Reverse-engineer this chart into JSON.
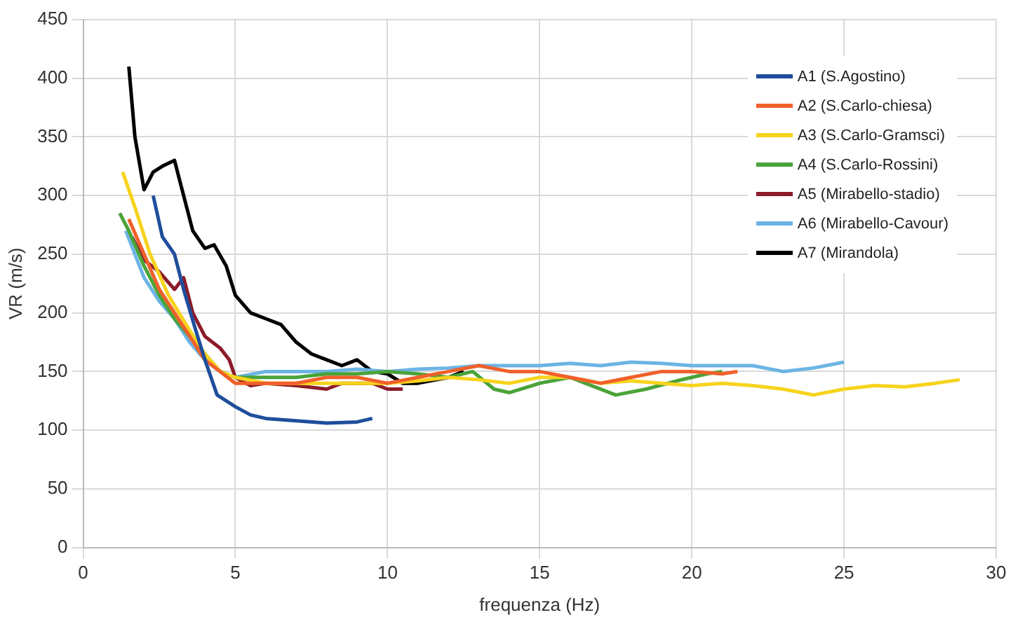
{
  "chart_data": {
    "type": "line",
    "xlabel": "frequenza (Hz)",
    "ylabel": "VR (m/s)",
    "xlim": [
      0,
      30
    ],
    "xticks": [
      0,
      5,
      10,
      15,
      20,
      25,
      30
    ],
    "ylim": [
      0,
      450
    ],
    "yticks": [
      0,
      50,
      100,
      150,
      200,
      250,
      300,
      350,
      400,
      450
    ],
    "grid": true,
    "legend": "top right",
    "marker": "none",
    "series": [
      {
        "name": "A1 (S.Agostino)",
        "color": "#1f4e9c",
        "x": [
          2.3,
          2.6,
          3.0,
          3.3,
          3.7,
          4.0,
          4.4,
          5,
          5.5,
          6,
          7,
          8,
          9,
          9.5
        ],
        "values": [
          300,
          265,
          250,
          220,
          185,
          160,
          130,
          120,
          113,
          110,
          108,
          106,
          107,
          110
        ]
      },
      {
        "name": "A2 (S.Carlo-chiesa)",
        "color": "#f0602a",
        "x": [
          1.5,
          2,
          2.5,
          3,
          3.5,
          4,
          4.5,
          5,
          6,
          7,
          8,
          9,
          10,
          11,
          12,
          13,
          14,
          15,
          16,
          17,
          18,
          19,
          20,
          21,
          21.5
        ],
        "values": [
          280,
          250,
          220,
          200,
          180,
          160,
          150,
          140,
          140,
          140,
          145,
          145,
          140,
          145,
          150,
          155,
          150,
          150,
          145,
          140,
          145,
          150,
          150,
          148,
          150
        ]
      },
      {
        "name": "A3 (S.Carlo-Gramsci)",
        "color": "#f7d31c",
        "x": [
          1.3,
          1.7,
          2.2,
          2.8,
          3.5,
          4,
          4.5,
          5,
          6,
          7,
          8,
          9,
          10,
          11,
          12,
          13,
          14,
          15,
          16,
          17,
          18,
          19,
          20,
          21,
          22,
          23,
          24,
          25,
          26,
          27,
          28,
          28.8
        ],
        "values": [
          320,
          290,
          250,
          215,
          185,
          165,
          150,
          145,
          140,
          140,
          140,
          140,
          140,
          142,
          145,
          143,
          140,
          145,
          145,
          140,
          142,
          140,
          138,
          140,
          138,
          135,
          130,
          135,
          138,
          137,
          140,
          143
        ]
      },
      {
        "name": "A4 (S.Carlo-Rossini)",
        "color": "#4aa338",
        "x": [
          1.2,
          1.5,
          2,
          2.5,
          3,
          3.5,
          4,
          4.5,
          5,
          6,
          7,
          8,
          9,
          10,
          11,
          12,
          12.8,
          13.5,
          14,
          15,
          16,
          16.5,
          17.5,
          18.5,
          19.5,
          20.5,
          21
        ],
        "values": [
          285,
          270,
          240,
          215,
          195,
          180,
          165,
          150,
          145,
          145,
          145,
          148,
          148,
          150,
          148,
          145,
          150,
          135,
          132,
          140,
          145,
          140,
          130,
          135,
          142,
          148,
          150
        ]
      },
      {
        "name": "A5 (Mirabello-stadio)",
        "color": "#8c1c2a",
        "x": [
          1.6,
          2,
          2.5,
          3,
          3.3,
          3.6,
          4,
          4.5,
          4.8,
          5,
          5.5,
          6,
          7,
          8,
          8.5,
          9,
          9.5,
          10,
          10.5
        ],
        "values": [
          265,
          245,
          235,
          220,
          230,
          200,
          180,
          170,
          160,
          145,
          138,
          140,
          138,
          135,
          140,
          140,
          140,
          135,
          135
        ]
      },
      {
        "name": "A6 (Mirabello-Cavour)",
        "color": "#6cb4e4",
        "x": [
          1.4,
          2,
          2.5,
          3,
          3.5,
          4,
          4.5,
          5,
          6,
          7,
          8,
          9,
          10,
          11,
          12,
          13,
          14,
          15,
          16,
          17,
          18,
          19,
          20,
          21,
          22,
          23,
          24,
          25
        ],
        "values": [
          270,
          230,
          210,
          195,
          175,
          160,
          150,
          145,
          150,
          150,
          150,
          152,
          150,
          152,
          153,
          155,
          155,
          155,
          157,
          155,
          158,
          157,
          155,
          155,
          155,
          150,
          153,
          158
        ]
      },
      {
        "name": "A7 (Mirandola)",
        "color": "#000000",
        "x": [
          1.5,
          1.7,
          2.0,
          2.3,
          2.6,
          3.0,
          3.3,
          3.6,
          4.0,
          4.3,
          4.7,
          5.0,
          5.5,
          6,
          6.5,
          7,
          7.5,
          8,
          8.5,
          9,
          9.5,
          10,
          10.5,
          11,
          12,
          12.5
        ],
        "values": [
          410,
          350,
          305,
          320,
          325,
          330,
          300,
          270,
          255,
          258,
          240,
          215,
          200,
          195,
          190,
          175,
          165,
          160,
          155,
          160,
          150,
          148,
          140,
          140,
          145,
          150
        ]
      }
    ]
  }
}
